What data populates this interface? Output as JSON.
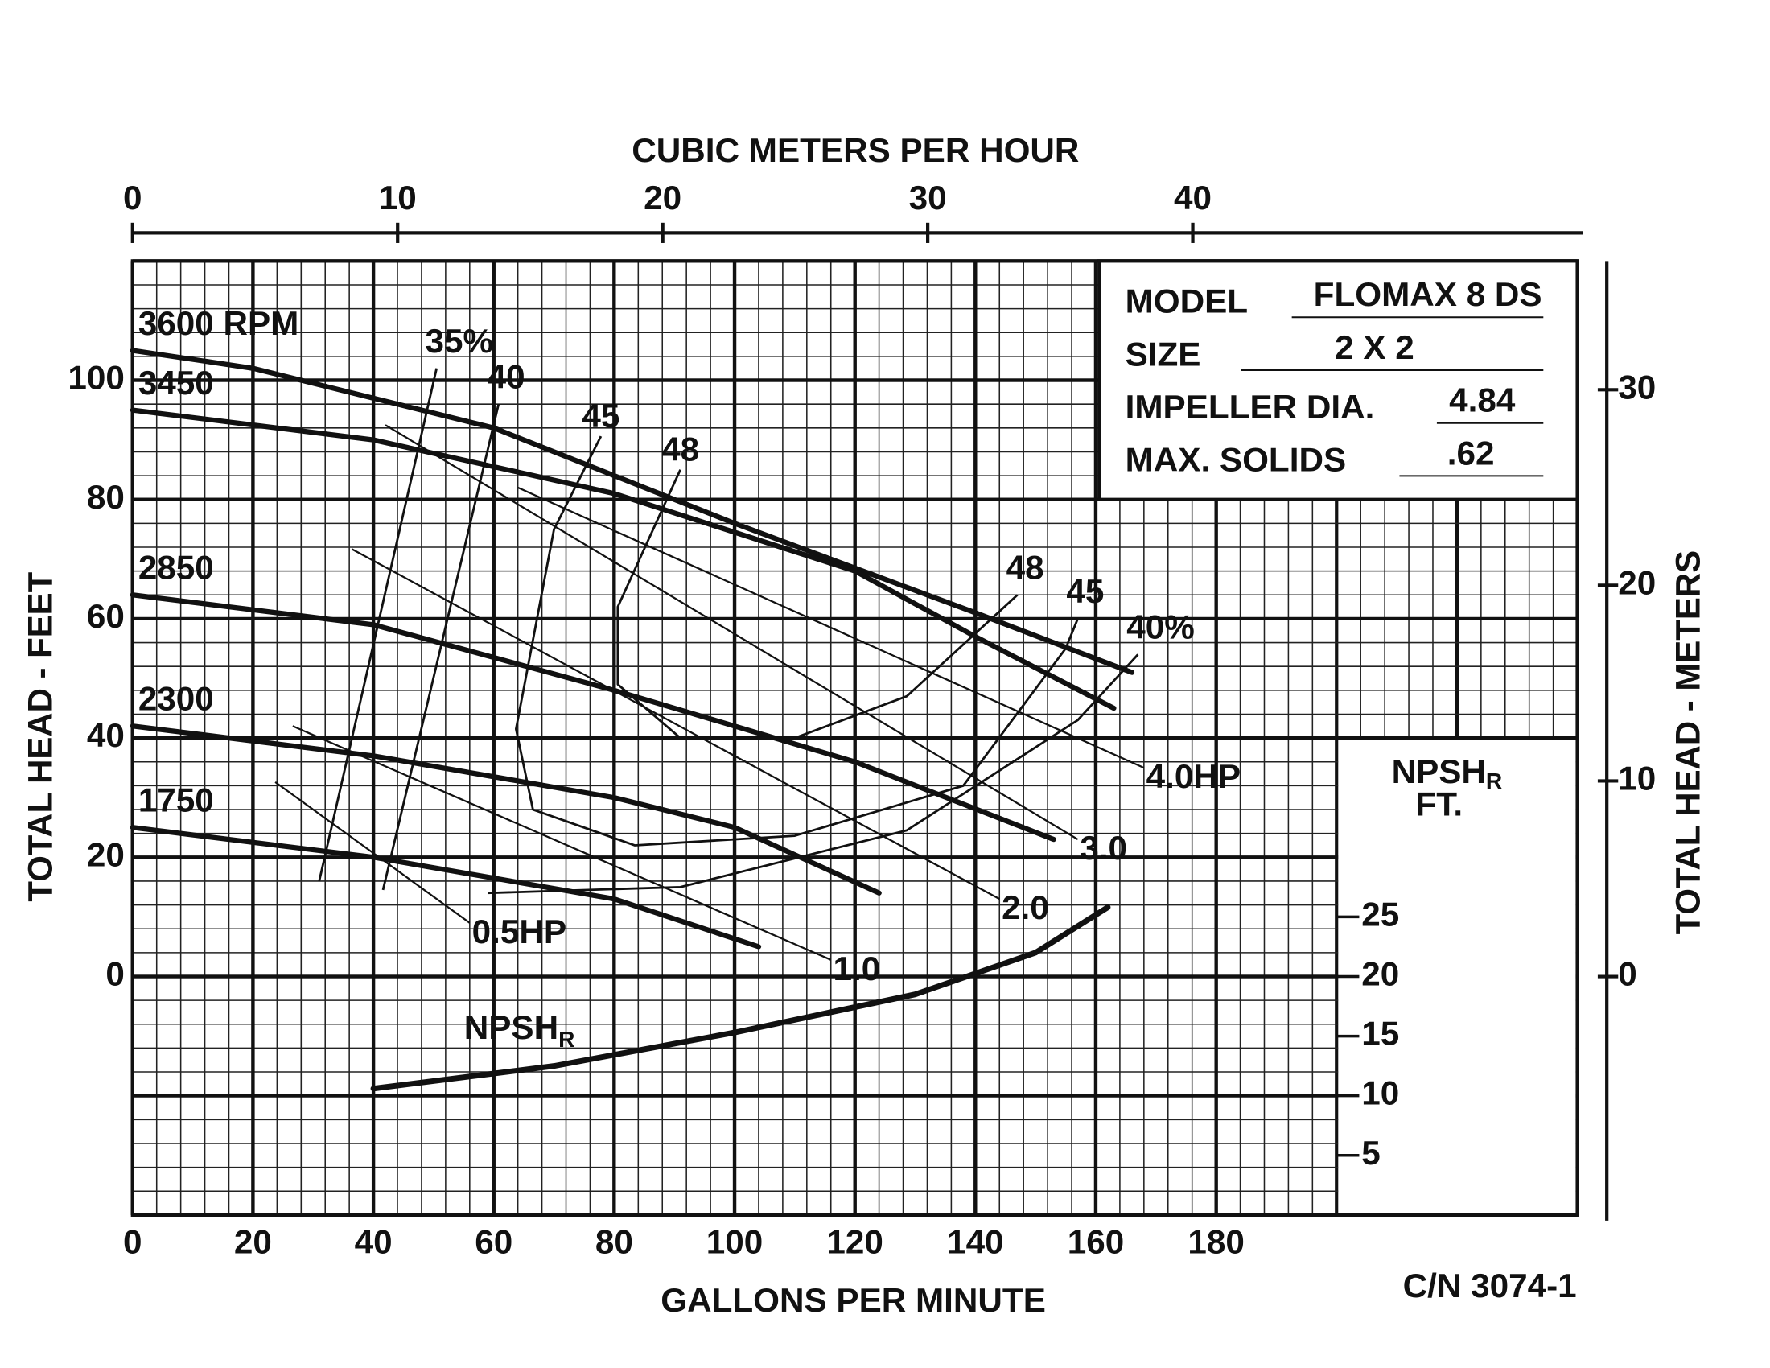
{
  "chart_data": {
    "type": "line",
    "xlabel": "GALLONS PER MINUTE",
    "x2label": "CUBIC METERS PER HOUR",
    "ylabel": "TOTAL HEAD - FEET",
    "y2label": "TOTAL HEAD - METERS",
    "y3label": {
      "text": "NPSH",
      "sub": "R",
      "unit": "FT."
    },
    "xlim": [
      0,
      240
    ],
    "xticks": [
      0,
      20,
      40,
      60,
      80,
      100,
      120,
      140,
      160,
      180
    ],
    "x2lim": [
      0,
      54.51
    ],
    "x2ticks": [
      0,
      10,
      20,
      30,
      40
    ],
    "ylim": [
      -40,
      120
    ],
    "yticks": [
      0,
      20,
      40,
      60,
      80,
      100
    ],
    "y2lim": [
      -12.19,
      36.58
    ],
    "y2ticks": [
      0,
      10,
      20,
      30
    ],
    "y3lim": [
      0,
      80
    ],
    "y3ticks": [
      5,
      10,
      15,
      20,
      25
    ],
    "grid": true,
    "series": [
      {
        "name": "3600 RPM",
        "group": "head",
        "color": "#111111",
        "x": [
          0,
          20,
          40,
          60,
          100,
          140,
          166
        ],
        "values": [
          105,
          102,
          97,
          92,
          76,
          61,
          51
        ]
      },
      {
        "name": "3450",
        "group": "head",
        "color": "#111111",
        "x": [
          0,
          40,
          80,
          120,
          140,
          163
        ],
        "values": [
          95,
          90,
          81,
          68,
          57,
          45
        ]
      },
      {
        "name": "2850",
        "group": "head",
        "color": "#111111",
        "x": [
          0,
          40,
          80,
          120,
          153
        ],
        "values": [
          64,
          59,
          48,
          36,
          23
        ]
      },
      {
        "name": "2300",
        "group": "head",
        "color": "#111111",
        "x": [
          0,
          40,
          80,
          100,
          124
        ],
        "values": [
          42,
          37,
          30,
          25,
          14
        ]
      },
      {
        "name": "1750",
        "group": "head",
        "color": "#111111",
        "x": [
          0,
          40,
          80,
          104
        ],
        "values": [
          25,
          20,
          13,
          5
        ]
      },
      {
        "name": "35%",
        "group": "efficiency",
        "color": "#111111",
        "x": [
          31,
          50.5
        ],
        "values": [
          16,
          102
        ]
      },
      {
        "name": "40",
        "group": "efficiency",
        "color": "#111111",
        "x": [
          41.6,
          60.8
        ],
        "values": [
          14.5,
          96
        ]
      },
      {
        "name": "45",
        "group": "efficiency",
        "ends": 2,
        "color": "#111111",
        "x": [
          77.8,
          70,
          63.7,
          66.5,
          83.4,
          110,
          138,
          155,
          157
        ],
        "values": [
          90.6,
          75,
          41.5,
          28,
          22,
          23.6,
          32,
          55,
          60
        ]
      },
      {
        "name": "48",
        "group": "efficiency",
        "ends": 2,
        "color": "#111111",
        "x": [
          91,
          80.6,
          80.6,
          91,
          110,
          128.6,
          147
        ],
        "values": [
          85,
          62,
          49,
          40,
          40,
          47,
          64
        ]
      },
      {
        "name": "40%",
        "group": "efficiency",
        "color": "#111111",
        "x": [
          59,
          91,
          128.6,
          157,
          167
        ],
        "values": [
          14,
          15,
          24.5,
          43,
          54
        ]
      },
      {
        "name": "4.0HP",
        "group": "power",
        "color": "#111111",
        "x": [
          64,
          168
        ],
        "values": [
          82,
          35
        ]
      },
      {
        "name": "3.0",
        "group": "power",
        "color": "#111111",
        "x": [
          42,
          157
        ],
        "values": [
          92.5,
          23
        ]
      },
      {
        "name": "2.0",
        "group": "power",
        "color": "#111111",
        "x": [
          36.4,
          144
        ],
        "values": [
          71.7,
          13
        ]
      },
      {
        "name": "1.0",
        "group": "power",
        "color": "#111111",
        "x": [
          26.6,
          116
        ],
        "values": [
          42,
          2.8
        ]
      },
      {
        "name": "0.5HP",
        "group": "power",
        "color": "#111111",
        "x": [
          23.7,
          56
        ],
        "values": [
          32.6,
          9
        ]
      },
      {
        "name": "NPSH",
        "name_sub": "R",
        "group": "npsh",
        "axis": "y3",
        "color": "#111111",
        "x": [
          40,
          70,
          100,
          130,
          150,
          162
        ],
        "values": [
          10.6,
          12.5,
          15.3,
          18.5,
          22,
          25.8
        ]
      }
    ]
  },
  "info": {
    "rows": [
      {
        "label": "MODEL",
        "value": "FLOMAX 8 DS"
      },
      {
        "label": "SIZE",
        "value": "2 X 2"
      },
      {
        "label": "IMPELLER DIA.",
        "value": "4.84"
      },
      {
        "label": "MAX. SOLIDS",
        "value": ".62"
      }
    ]
  },
  "code": "C/N 3074-1"
}
